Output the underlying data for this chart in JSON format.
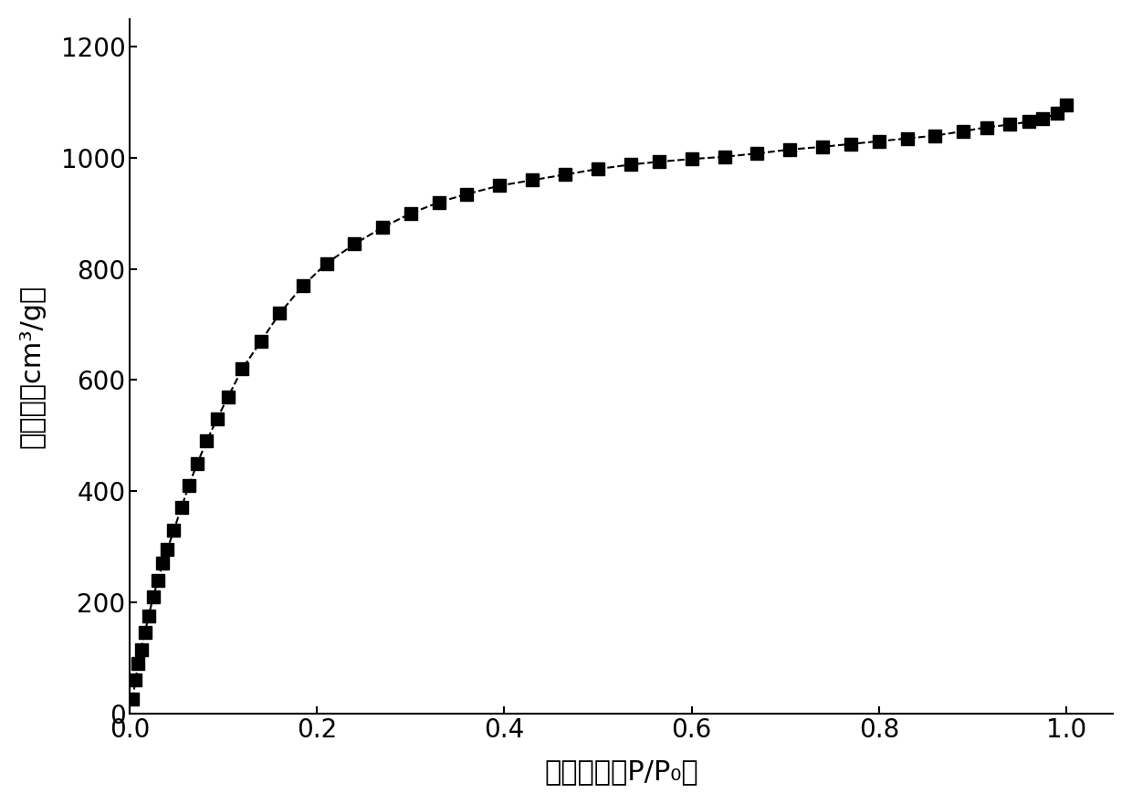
{
  "x": [
    0.003,
    0.006,
    0.009,
    0.012,
    0.016,
    0.02,
    0.025,
    0.03,
    0.035,
    0.04,
    0.047,
    0.055,
    0.063,
    0.072,
    0.082,
    0.093,
    0.105,
    0.12,
    0.14,
    0.16,
    0.185,
    0.21,
    0.24,
    0.27,
    0.3,
    0.33,
    0.36,
    0.395,
    0.43,
    0.465,
    0.5,
    0.535,
    0.565,
    0.6,
    0.635,
    0.67,
    0.705,
    0.74,
    0.77,
    0.8,
    0.83,
    0.86,
    0.89,
    0.915,
    0.94,
    0.96,
    0.975,
    0.99,
    1.0
  ],
  "y": [
    25,
    60,
    90,
    115,
    145,
    175,
    210,
    240,
    270,
    295,
    330,
    370,
    410,
    450,
    490,
    530,
    570,
    620,
    670,
    720,
    770,
    810,
    845,
    875,
    900,
    920,
    935,
    950,
    960,
    970,
    980,
    988,
    993,
    998,
    1002,
    1008,
    1015,
    1020,
    1025,
    1030,
    1035,
    1040,
    1048,
    1055,
    1060,
    1065,
    1070,
    1080,
    1095
  ],
  "xlabel": "相对压力（P/P₀）",
  "ylabel": "吸附量（cm³/g）",
  "xlim": [
    0.0,
    1.05
  ],
  "ylim": [
    0,
    1250
  ],
  "xticks": [
    0.0,
    0.2,
    0.4,
    0.6,
    0.8,
    1.0
  ],
  "yticks": [
    0,
    200,
    400,
    600,
    800,
    1000,
    1200
  ],
  "marker_color": "#000000",
  "line_color": "#000000",
  "background_color": "#ffffff",
  "xlabel_fontsize": 22,
  "ylabel_fontsize": 22,
  "tick_fontsize": 20,
  "marker_size": 10,
  "line_width": 1.5
}
